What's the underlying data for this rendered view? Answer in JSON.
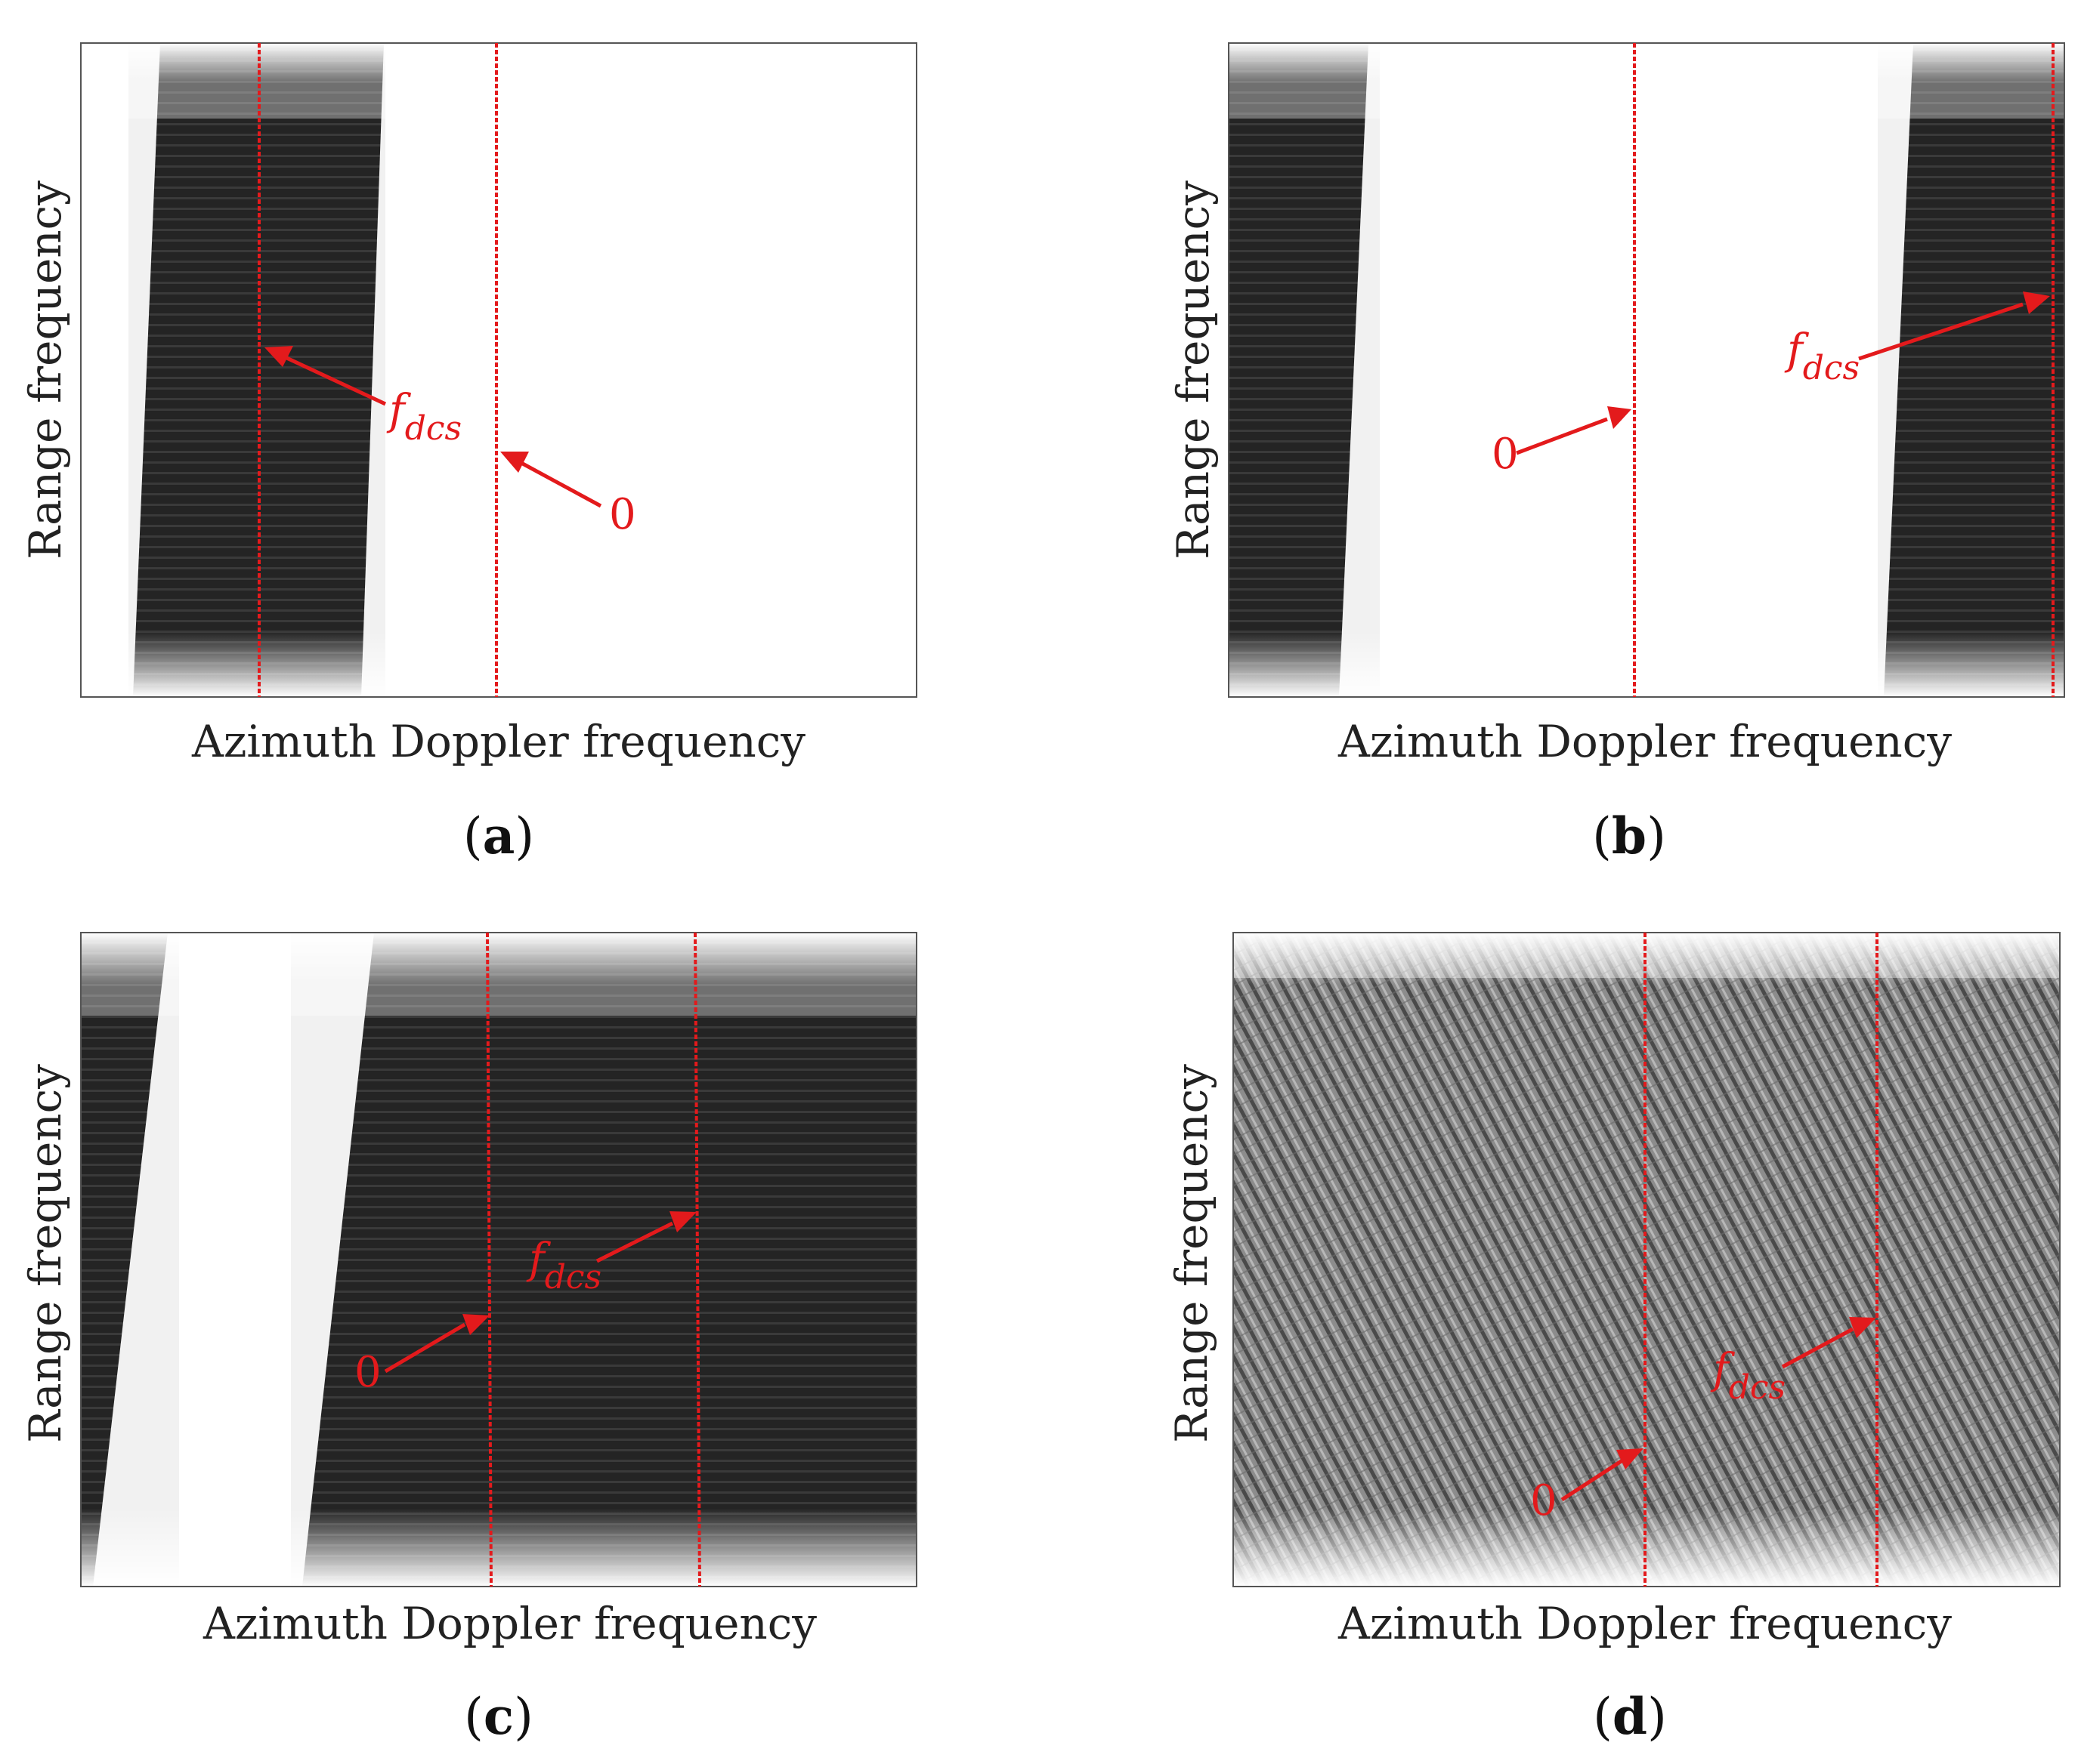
{
  "figure": {
    "panels": [
      {
        "id": "a",
        "label": "a",
        "y_axis_label": "Range frequency",
        "x_axis_label": "Azimuth Doppler frequency",
        "annotations": [
          {
            "kind": "fdcs",
            "symbol": "f",
            "subscript": "dcs"
          },
          {
            "kind": "zero",
            "text": "0"
          }
        ]
      },
      {
        "id": "b",
        "label": "b",
        "y_axis_label": "Range frequency",
        "x_axis_label": "Azimuth Doppler frequency",
        "annotations": [
          {
            "kind": "zero",
            "text": "0"
          },
          {
            "kind": "fdcs",
            "symbol": "f",
            "subscript": "dcs"
          }
        ]
      },
      {
        "id": "c",
        "label": "c",
        "y_axis_label": "Range frequency",
        "x_axis_label": "Azimuth Doppler frequency",
        "annotations": [
          {
            "kind": "zero",
            "text": "0"
          },
          {
            "kind": "fdcs",
            "symbol": "f",
            "subscript": "dcs"
          }
        ]
      },
      {
        "id": "d",
        "label": "d",
        "y_axis_label": "Range frequency",
        "x_axis_label": "Azimuth Doppler frequency",
        "annotations": [
          {
            "kind": "zero",
            "text": "0"
          },
          {
            "kind": "fdcs",
            "symbol": "f",
            "subscript": "dcs"
          }
        ]
      }
    ],
    "colors": {
      "annotation": "#e31a1c",
      "spectrum_dark": "#1e1e1e",
      "spectrum_mid": "#8a8a8a",
      "background": "#ffffff"
    }
  }
}
